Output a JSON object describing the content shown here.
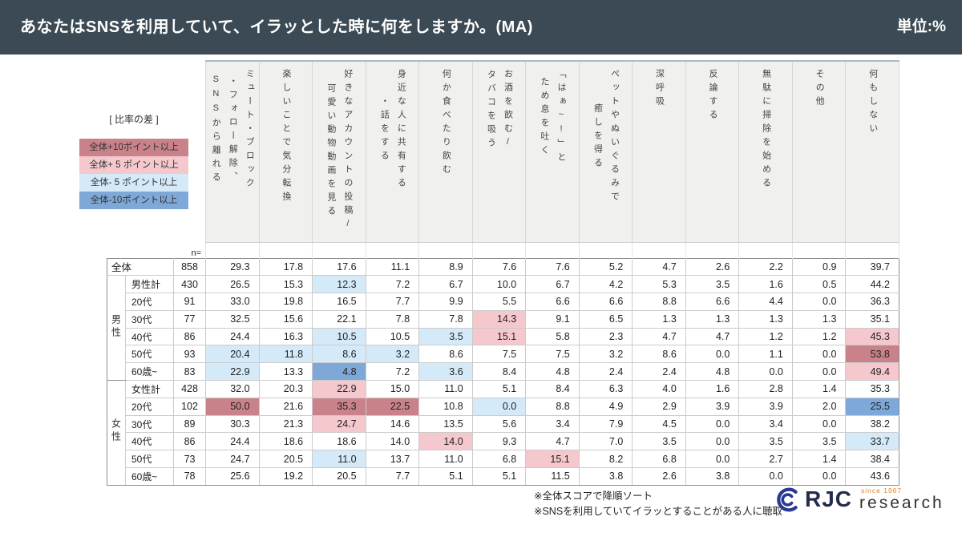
{
  "header": {
    "title": "あなたはSNSを利用していて、イラッとした時に何をしますか。(MA)",
    "unit": "単位:%",
    "bg": "#3b4a54"
  },
  "colors": {
    "p10": "#ca828a",
    "p5": "#f5c8ce",
    "m5": "#d5eaf8",
    "m10": "#7ea8d8"
  },
  "legend": {
    "title": "[ 比率の差 ]",
    "items": [
      {
        "label": "全体+10ポイント以上",
        "color_key": "p10"
      },
      {
        "label": "全体+ 5 ポイント以上",
        "color_key": "p5"
      },
      {
        "label": "全体- 5 ポイント以上",
        "color_key": "m5"
      },
      {
        "label": "全体-10ポイント以上",
        "color_key": "m10"
      }
    ]
  },
  "chart_data": {
    "type": "table",
    "n_label": "n=",
    "columns": [
      "ミュート・ブロック\n・フォロー解除、\nSNSから離れる",
      "楽しいことで気分転換",
      "好きなアカウントの投稿/\n可愛い動物動画を見る",
      "身近な人に共有する\n・話をする",
      "何か食べたり飲む",
      "お酒を飲む/\nタバコを吸う",
      "「はぁ~!」と\nため息を吐く",
      "ペットやぬいぐるみで\n癒しを得る",
      "深呼吸",
      "反論する",
      "無駄に掃除を始める",
      "その他",
      "何もしない"
    ],
    "rows": [
      {
        "label": "全体",
        "block_start": true,
        "n": "858",
        "values": [
          "29.3",
          "17.8",
          "17.6",
          "11.1",
          "8.9",
          "7.6",
          "7.6",
          "5.2",
          "4.7",
          "2.6",
          "2.2",
          "0.9",
          "39.7"
        ],
        "marks": [
          "",
          "",
          "",
          "",
          "",
          "",
          "",
          "",
          "",
          "",
          "",
          "",
          ""
        ]
      },
      {
        "label": "男性計",
        "group": "男性",
        "group_span": 6,
        "block_start": true,
        "n": "430",
        "values": [
          "26.5",
          "15.3",
          "12.3",
          "7.2",
          "6.7",
          "10.0",
          "6.7",
          "4.2",
          "5.3",
          "3.5",
          "1.6",
          "0.5",
          "44.2"
        ],
        "marks": [
          "",
          "",
          "m5",
          "",
          "",
          "",
          "",
          "",
          "",
          "",
          "",
          "",
          ""
        ]
      },
      {
        "label": "20代",
        "n": "91",
        "values": [
          "33.0",
          "19.8",
          "16.5",
          "7.7",
          "9.9",
          "5.5",
          "6.6",
          "6.6",
          "8.8",
          "6.6",
          "4.4",
          "0.0",
          "36.3"
        ],
        "marks": [
          "",
          "",
          "",
          "",
          "",
          "",
          "",
          "",
          "",
          "",
          "",
          "",
          ""
        ]
      },
      {
        "label": "30代",
        "n": "77",
        "values": [
          "32.5",
          "15.6",
          "22.1",
          "7.8",
          "7.8",
          "14.3",
          "9.1",
          "6.5",
          "1.3",
          "1.3",
          "1.3",
          "1.3",
          "35.1"
        ],
        "marks": [
          "",
          "",
          "",
          "",
          "",
          "p5",
          "",
          "",
          "",
          "",
          "",
          "",
          ""
        ]
      },
      {
        "label": "40代",
        "n": "86",
        "values": [
          "24.4",
          "16.3",
          "10.5",
          "10.5",
          "3.5",
          "15.1",
          "5.8",
          "2.3",
          "4.7",
          "4.7",
          "1.2",
          "1.2",
          "45.3"
        ],
        "marks": [
          "",
          "",
          "m5",
          "",
          "m5",
          "p5",
          "",
          "",
          "",
          "",
          "",
          "",
          "p5"
        ]
      },
      {
        "label": "50代",
        "n": "93",
        "values": [
          "20.4",
          "11.8",
          "8.6",
          "3.2",
          "8.6",
          "7.5",
          "7.5",
          "3.2",
          "8.6",
          "0.0",
          "1.1",
          "0.0",
          "53.8"
        ],
        "marks": [
          "m5",
          "m5",
          "m5",
          "m5",
          "",
          "",
          "",
          "",
          "",
          "",
          "",
          "",
          "p10"
        ]
      },
      {
        "label": "60歳~",
        "n": "83",
        "values": [
          "22.9",
          "13.3",
          "4.8",
          "7.2",
          "3.6",
          "8.4",
          "4.8",
          "2.4",
          "2.4",
          "4.8",
          "0.0",
          "0.0",
          "49.4"
        ],
        "marks": [
          "m5",
          "",
          "m10",
          "",
          "m5",
          "",
          "",
          "",
          "",
          "",
          "",
          "",
          "p5"
        ]
      },
      {
        "label": "女性計",
        "group": "女性",
        "group_span": 6,
        "block_start": true,
        "n": "428",
        "values": [
          "32.0",
          "20.3",
          "22.9",
          "15.0",
          "11.0",
          "5.1",
          "8.4",
          "6.3",
          "4.0",
          "1.6",
          "2.8",
          "1.4",
          "35.3"
        ],
        "marks": [
          "",
          "",
          "p5",
          "",
          "",
          "",
          "",
          "",
          "",
          "",
          "",
          "",
          ""
        ]
      },
      {
        "label": "20代",
        "n": "102",
        "values": [
          "50.0",
          "21.6",
          "35.3",
          "22.5",
          "10.8",
          "0.0",
          "8.8",
          "4.9",
          "2.9",
          "3.9",
          "3.9",
          "2.0",
          "25.5"
        ],
        "marks": [
          "p10",
          "",
          "p10",
          "p10",
          "",
          "m5",
          "",
          "",
          "",
          "",
          "",
          "",
          "m10"
        ]
      },
      {
        "label": "30代",
        "n": "89",
        "values": [
          "30.3",
          "21.3",
          "24.7",
          "14.6",
          "13.5",
          "5.6",
          "3.4",
          "7.9",
          "4.5",
          "0.0",
          "3.4",
          "0.0",
          "38.2"
        ],
        "marks": [
          "",
          "",
          "p5",
          "",
          "",
          "",
          "",
          "",
          "",
          "",
          "",
          "",
          ""
        ]
      },
      {
        "label": "40代",
        "n": "86",
        "values": [
          "24.4",
          "18.6",
          "18.6",
          "14.0",
          "14.0",
          "9.3",
          "4.7",
          "7.0",
          "3.5",
          "0.0",
          "3.5",
          "3.5",
          "33.7"
        ],
        "marks": [
          "",
          "",
          "",
          "",
          "p5",
          "",
          "",
          "",
          "",
          "",
          "",
          "",
          "m5"
        ]
      },
      {
        "label": "50代",
        "n": "73",
        "values": [
          "24.7",
          "20.5",
          "11.0",
          "13.7",
          "11.0",
          "6.8",
          "15.1",
          "8.2",
          "6.8",
          "0.0",
          "2.7",
          "1.4",
          "38.4"
        ],
        "marks": [
          "",
          "",
          "m5",
          "",
          "",
          "",
          "p5",
          "",
          "",
          "",
          "",
          "",
          ""
        ]
      },
      {
        "label": "60歳~",
        "n": "78",
        "values": [
          "25.6",
          "19.2",
          "20.5",
          "7.7",
          "5.1",
          "5.1",
          "11.5",
          "3.8",
          "2.6",
          "3.8",
          "0.0",
          "0.0",
          "43.6"
        ],
        "marks": [
          "",
          "",
          "",
          "",
          "",
          "",
          "",
          "",
          "",
          "",
          "",
          "",
          ""
        ]
      }
    ]
  },
  "footer": {
    "notes": [
      "※全体スコアで降順ソート",
      "※SNSを利用していてイラッとすることがある人に聴取"
    ],
    "logo": {
      "icon": "rjc-circle-mark",
      "text": "RJC",
      "since": "since 1967",
      "name": "research",
      "navy": "#2b3990",
      "dark_navy": "#242c4e",
      "dark": "#333333",
      "orange": "#e0872f"
    }
  }
}
